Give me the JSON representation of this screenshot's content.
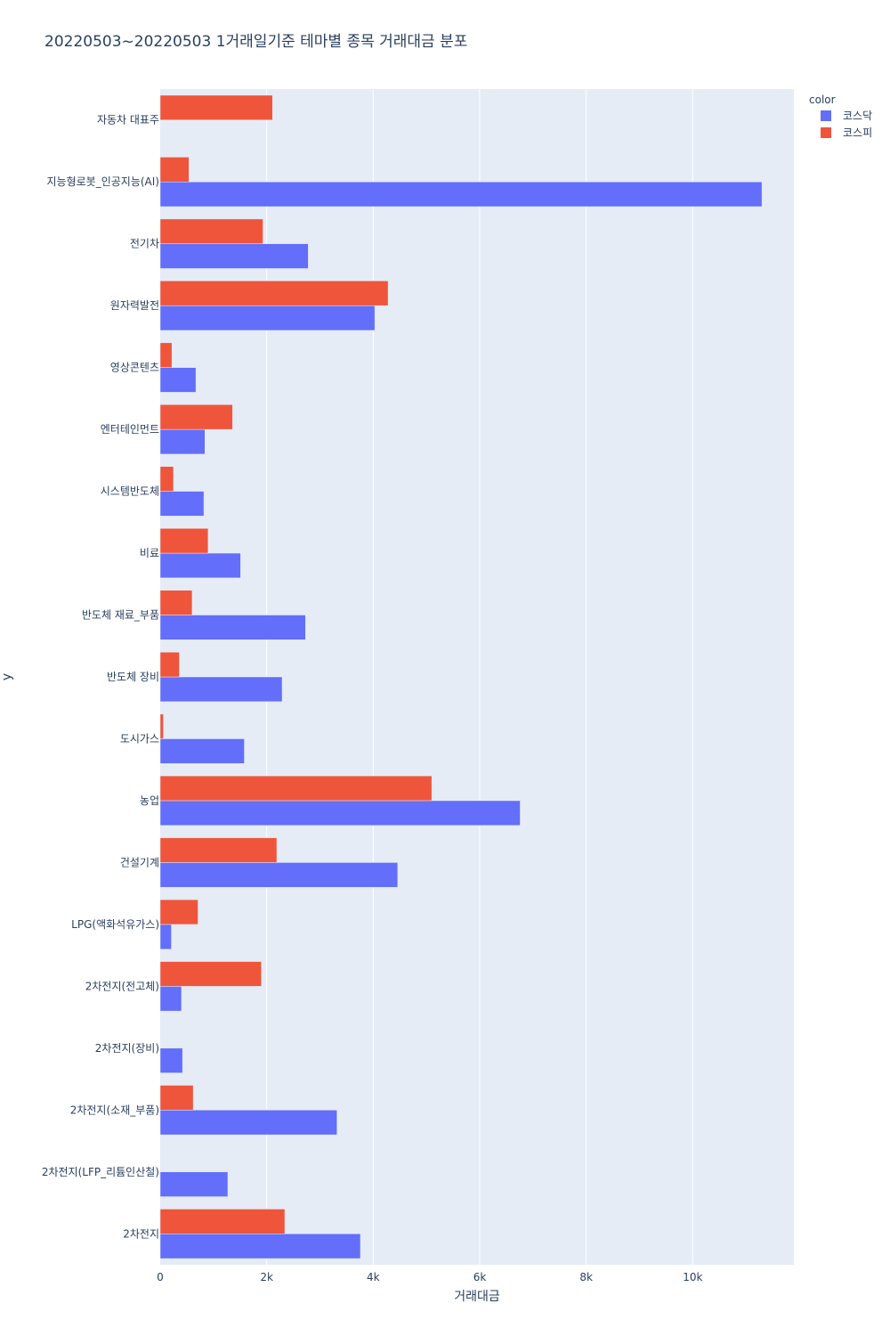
{
  "chart_data": {
    "type": "bar",
    "orientation": "horizontal",
    "barmode": "group",
    "title": "20220503~20220503 1거래일기준 테마별 종목 거래대금 분포",
    "xlabel": "거래대금",
    "ylabel": "y",
    "xlim": [
      0,
      11900
    ],
    "x_ticks": [
      0,
      2000,
      4000,
      6000,
      8000,
      10000
    ],
    "x_tick_labels": [
      "0",
      "2k",
      "4k",
      "6k",
      "8k",
      "10k"
    ],
    "grid": true,
    "legend_title": "color",
    "legend_position": "top-right",
    "plot_background": "#E5ECF6",
    "categories": [
      "자동차 대표주",
      "지능형로봇_인공지능(AI)",
      "전기차",
      "원자력발전",
      "영상콘텐츠",
      "엔터테인먼트",
      "시스템반도체",
      "비료",
      "반도체 재료_부품",
      "반도체 장비",
      "도시가스",
      "농업",
      "건설기계",
      "LPG(액화석유가스)",
      "2차전지(전고체)",
      "2차전지(장비)",
      "2차전지(소재_부품)",
      "2차전지(LFP_리튬인산철)",
      "2차전지"
    ],
    "series": [
      {
        "name": "코스닥",
        "color": "#636EFA",
        "values": [
          null,
          11300,
          2780,
          4030,
          670,
          840,
          820,
          1510,
          2730,
          2290,
          1580,
          6760,
          4460,
          210,
          400,
          420,
          3320,
          1270,
          3760
        ]
      },
      {
        "name": "코스피",
        "color": "#EF553B",
        "values": [
          2110,
          540,
          1930,
          4280,
          220,
          1360,
          250,
          900,
          600,
          360,
          60,
          5100,
          2190,
          710,
          1900,
          null,
          620,
          null,
          2340
        ]
      }
    ]
  }
}
